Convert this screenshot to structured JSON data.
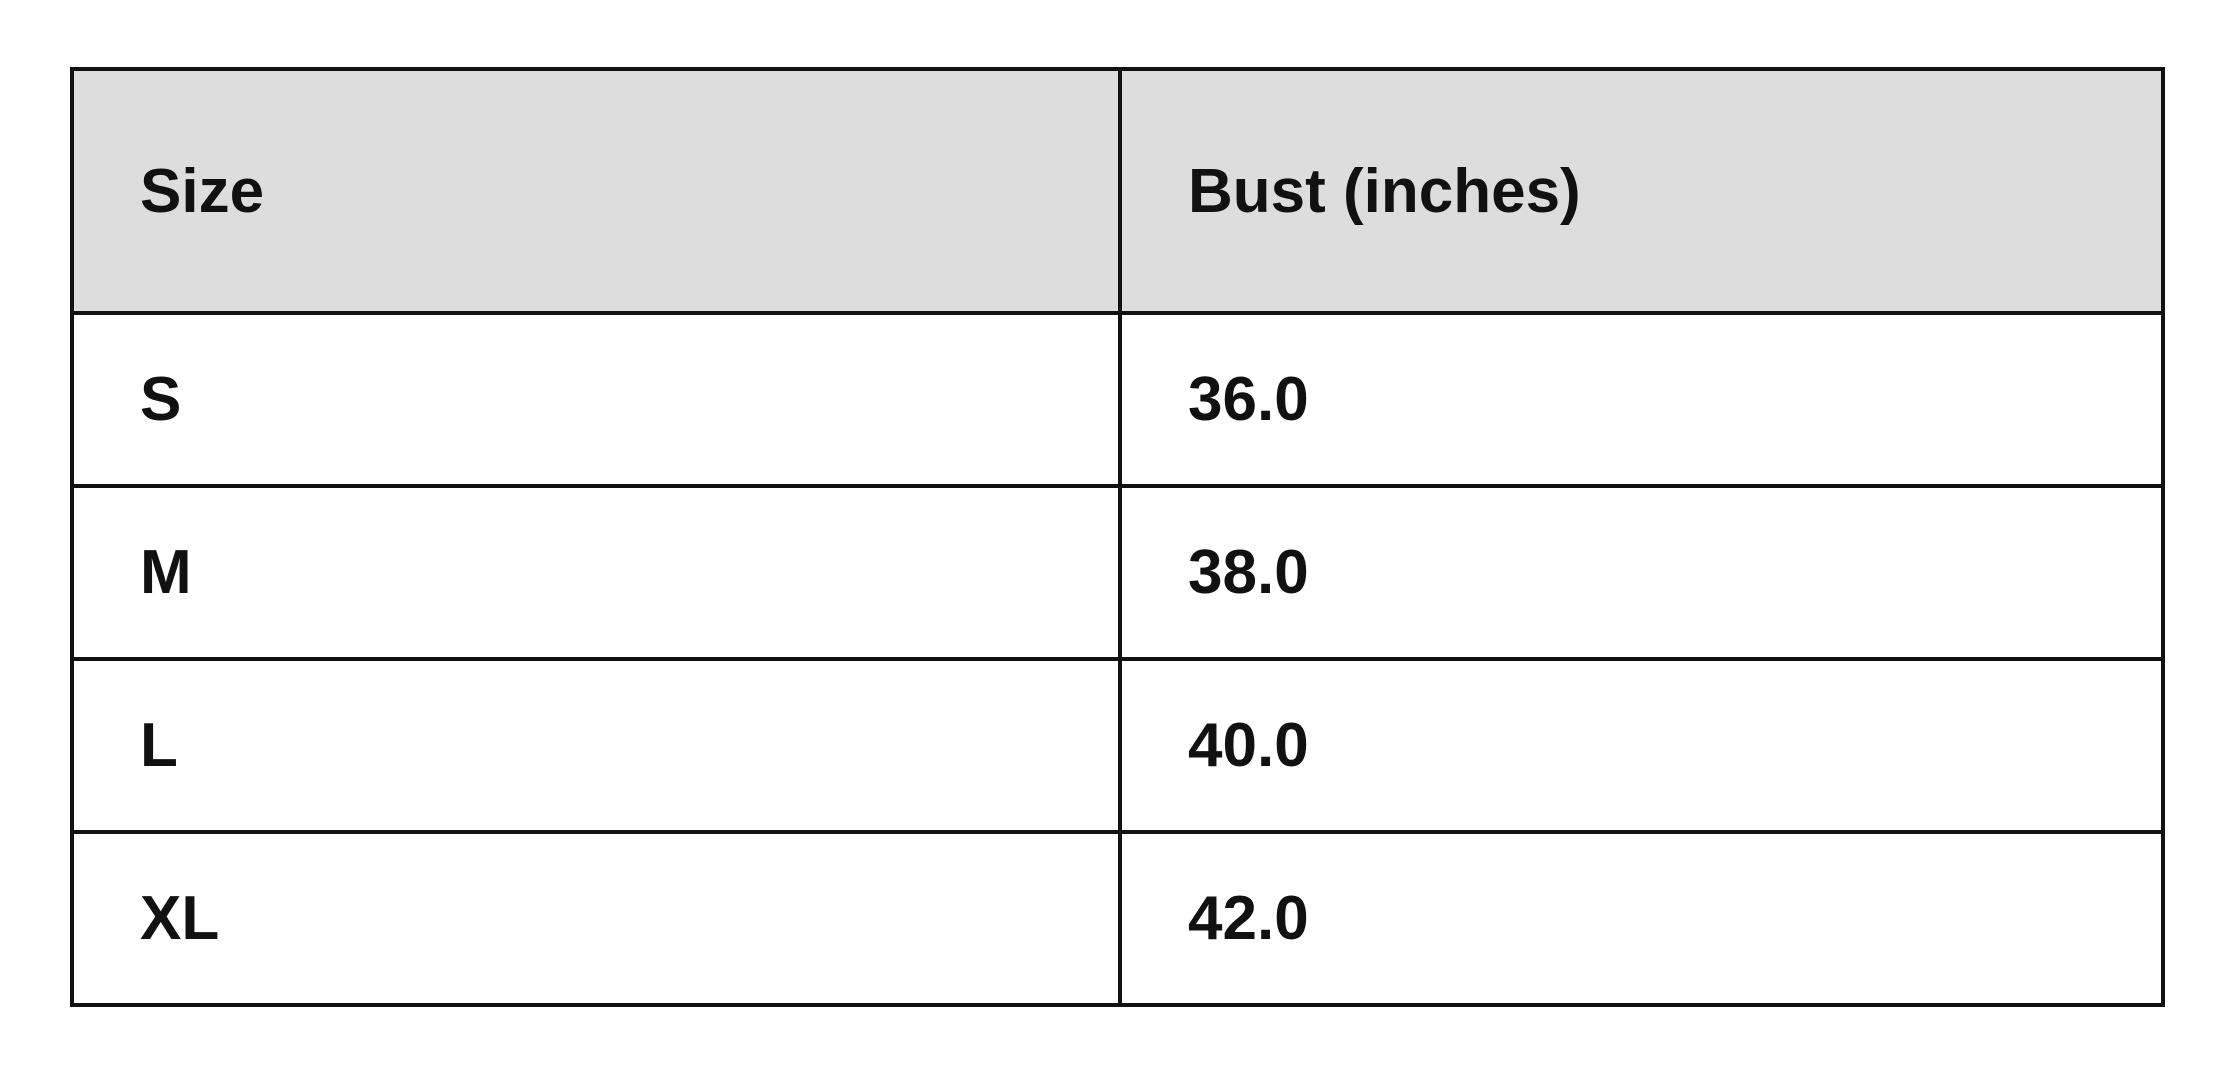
{
  "table": {
    "headers": [
      "Size",
      "Bust (inches)"
    ],
    "rows": [
      [
        "S",
        "36.0"
      ],
      [
        "M",
        "38.0"
      ],
      [
        "L",
        "40.0"
      ],
      [
        "XL",
        "42.0"
      ]
    ]
  },
  "colors": {
    "header_bg": "#dddddd",
    "border": "#111111"
  }
}
